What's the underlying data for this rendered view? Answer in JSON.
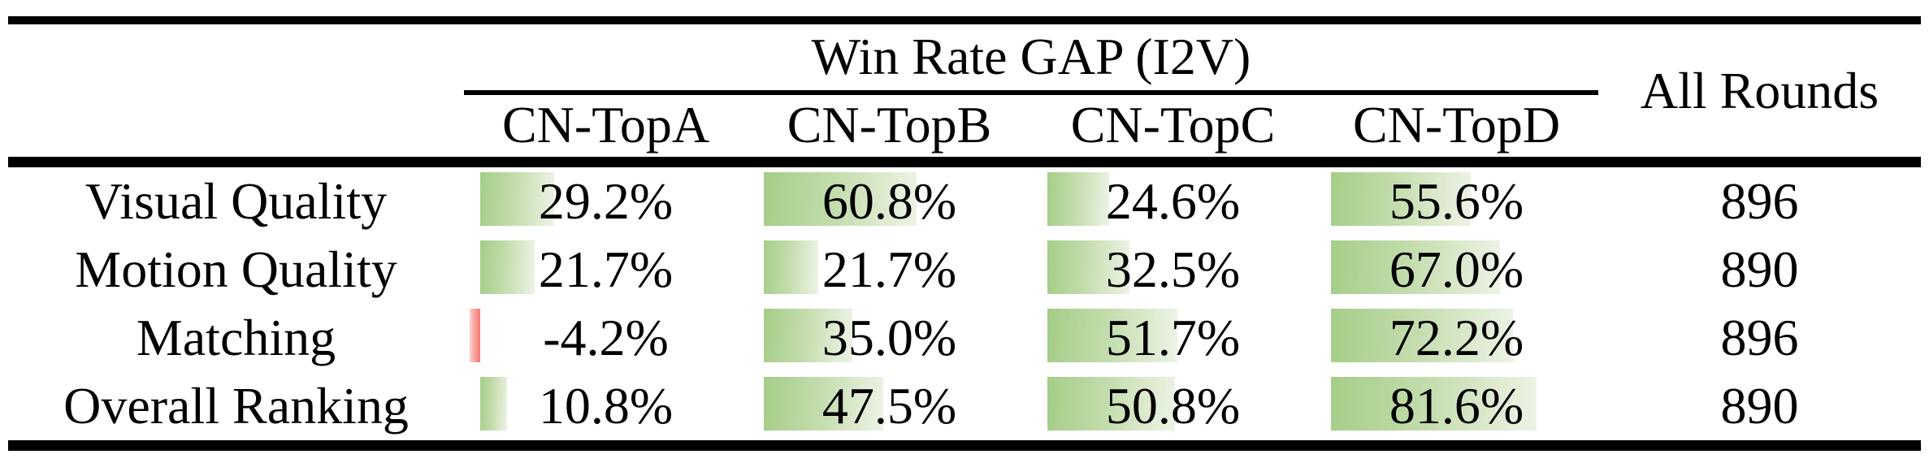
{
  "table": {
    "group_header": "Win Rate GAP (I2V)",
    "all_rounds_header": "All Rounds",
    "columns": [
      "CN-TopA",
      "CN-TopB",
      "CN-TopC",
      "CN-TopD"
    ],
    "rows": [
      {
        "label": "Visual Quality",
        "values": [
          "29.2%",
          "60.8%",
          "24.6%",
          "55.6%"
        ],
        "numeric": [
          29.2,
          60.8,
          24.6,
          55.6
        ],
        "all_rounds": "896"
      },
      {
        "label": "Motion Quality",
        "values": [
          "21.7%",
          "21.7%",
          "32.5%",
          "67.0%"
        ],
        "numeric": [
          21.7,
          21.7,
          32.5,
          67.0
        ],
        "all_rounds": "890"
      },
      {
        "label": "Matching",
        "values": [
          "-4.2%",
          "35.0%",
          "51.7%",
          "72.2%"
        ],
        "numeric": [
          -4.2,
          35.0,
          51.7,
          72.2
        ],
        "all_rounds": "896"
      },
      {
        "label": "Overall Ranking",
        "values": [
          "10.8%",
          "47.5%",
          "50.8%",
          "81.6%"
        ],
        "numeric": [
          10.8,
          47.5,
          50.8,
          81.6
        ],
        "all_rounds": "890"
      }
    ]
  },
  "colors": {
    "background": "#ffffff",
    "text": "#000000",
    "rule": "#000000",
    "bar_positive_start": "#a5cd88",
    "bar_positive_end": "#eef3e6",
    "bar_negative_light": "#fccfcb",
    "bar_negative_dark": "#f87672"
  },
  "chart_data": {
    "type": "table",
    "title": "Win Rate GAP (I2V)",
    "categories": [
      "CN-TopA",
      "CN-TopB",
      "CN-TopC",
      "CN-TopD"
    ],
    "series": [
      {
        "name": "Visual Quality",
        "values": [
          29.2,
          60.8,
          24.6,
          55.6
        ],
        "all_rounds": 896
      },
      {
        "name": "Motion Quality",
        "values": [
          21.7,
          21.7,
          32.5,
          67.0
        ],
        "all_rounds": 890
      },
      {
        "name": "Matching",
        "values": [
          -4.2,
          35.0,
          51.7,
          72.2
        ],
        "all_rounds": 896
      },
      {
        "name": "Overall Ranking",
        "values": [
          10.8,
          47.5,
          50.8,
          81.6
        ],
        "all_rounds": 890
      }
    ],
    "unit": "percent",
    "notes": "Green data bars scale with positive win-rate gap; red bar marks negative value"
  }
}
